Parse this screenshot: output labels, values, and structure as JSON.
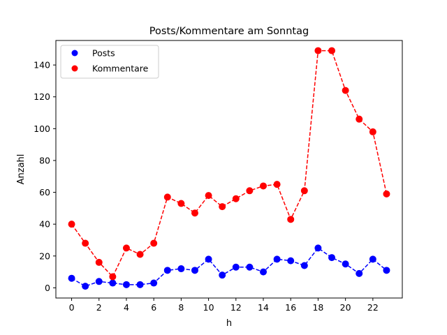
{
  "chart_data": {
    "type": "line",
    "title": "Posts/Kommentare am Sonntag",
    "xlabel": "h",
    "ylabel": "Anzahl",
    "x": [
      0,
      1,
      2,
      3,
      4,
      5,
      6,
      7,
      8,
      9,
      10,
      11,
      12,
      13,
      14,
      15,
      16,
      17,
      18,
      19,
      20,
      21,
      22,
      23
    ],
    "xlim": [
      -1.15,
      24.15
    ],
    "ylim": [
      -6.4,
      155.4
    ],
    "xticks": [
      0,
      2,
      4,
      6,
      8,
      10,
      12,
      14,
      16,
      18,
      20,
      22
    ],
    "yticks": [
      0,
      20,
      40,
      60,
      80,
      100,
      120,
      140
    ],
    "grid": false,
    "legend": {
      "placement": "top-left"
    },
    "series": [
      {
        "name": "Posts",
        "color": "#0000ff",
        "line_style": "dashed",
        "marker": "circle",
        "values": [
          6,
          1,
          4,
          3,
          2,
          2,
          3,
          11,
          12,
          11,
          18,
          8,
          13,
          13,
          10,
          18,
          17,
          14,
          25,
          19,
          15,
          9,
          18,
          11
        ]
      },
      {
        "name": "Kommentare",
        "color": "#ff0000",
        "line_style": "dashed",
        "marker": "circle",
        "values": [
          40,
          28,
          16,
          7,
          25,
          21,
          28,
          57,
          53,
          47,
          58,
          51,
          56,
          61,
          64,
          65,
          43,
          61,
          149,
          149,
          124,
          106,
          98,
          59
        ]
      }
    ]
  }
}
